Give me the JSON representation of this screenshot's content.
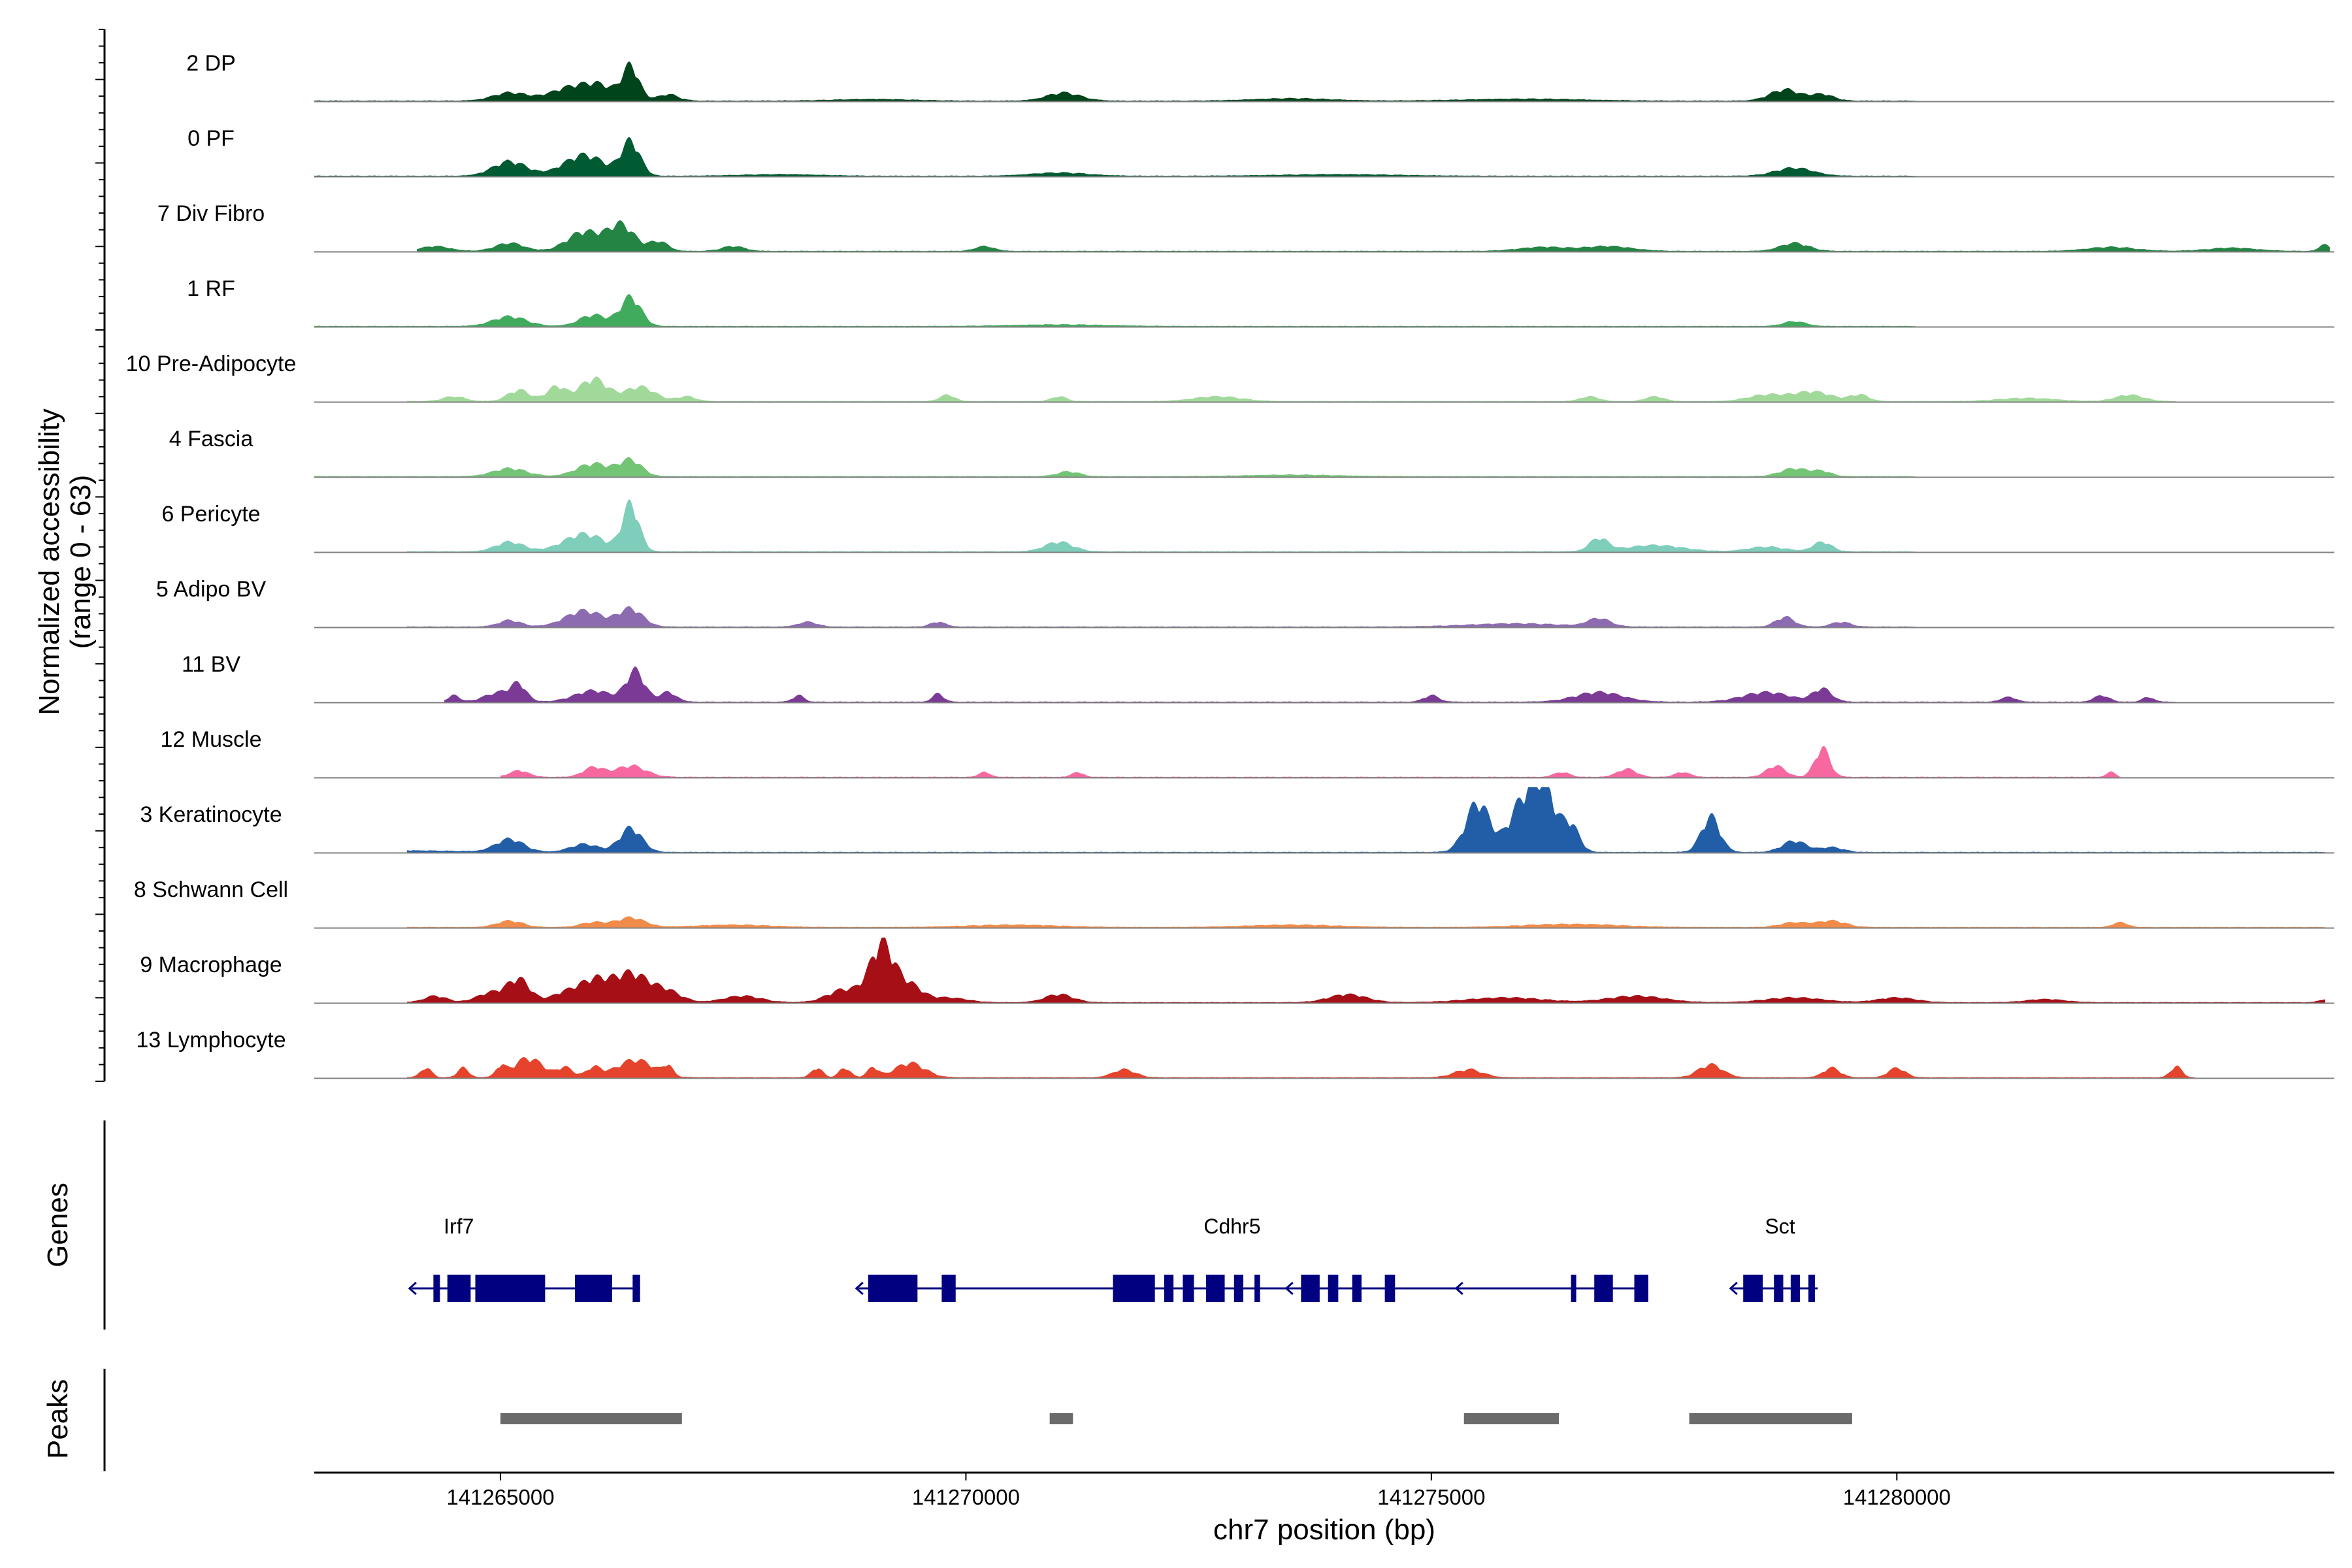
{
  "chart_data": {
    "type": "area",
    "title": "",
    "xlabel": "chr7 position (bp)",
    "ylabel_lines": [
      "Normalized accessibility",
      "(range 0 - 63)"
    ],
    "y_range": [
      0,
      63
    ],
    "xlim": [
      141263000,
      141284700
    ],
    "x_ticks": [
      141265000,
      141270000,
      141275000,
      141280000
    ],
    "x_tick_labels": [
      "141265000",
      "141270000",
      "141275000",
      "141280000"
    ],
    "tracks": [
      {
        "name": "2 DP",
        "color": "#00441b",
        "signal_range": [
          141263000,
          141280200
        ],
        "peaks": [
          [
            141265100,
            180,
            5
          ],
          [
            141265800,
            240,
            9
          ],
          [
            141266100,
            150,
            6
          ],
          [
            141266400,
            90,
            21
          ],
          [
            141266800,
            110,
            4
          ],
          [
            141271050,
            180,
            5
          ],
          [
            141278800,
            160,
            7
          ],
          [
            141279200,
            120,
            4
          ],
          [
            141273500,
            400,
            1.5
          ],
          [
            141269000,
            400,
            1
          ],
          [
            141276000,
            600,
            1.2
          ]
        ]
      },
      {
        "name": "0 PF",
        "color": "#005a32",
        "signal_range": [
          141263000,
          141280200
        ],
        "peaks": [
          [
            141265100,
            180,
            9
          ],
          [
            141265900,
            220,
            13
          ],
          [
            141266400,
            100,
            21
          ],
          [
            141271000,
            300,
            2
          ],
          [
            141278900,
            200,
            5
          ],
          [
            141268000,
            400,
            1
          ],
          [
            141274000,
            600,
            1
          ]
        ]
      },
      {
        "name": "7 Div Fibro",
        "color": "#238443",
        "signal_range": [
          141264100,
          141284650
        ],
        "peaks": [
          [
            141264300,
            150,
            3
          ],
          [
            141265100,
            150,
            5
          ],
          [
            141265900,
            180,
            12
          ],
          [
            141266300,
            140,
            16
          ],
          [
            141266700,
            100,
            6
          ],
          [
            141267500,
            120,
            3
          ],
          [
            141270200,
            100,
            3
          ],
          [
            141276200,
            250,
            2.5
          ],
          [
            141276900,
            250,
            3
          ],
          [
            141278900,
            150,
            5
          ],
          [
            141282300,
            250,
            2.5
          ],
          [
            141283600,
            250,
            2
          ],
          [
            141284600,
            60,
            4
          ]
        ]
      },
      {
        "name": "1 RF",
        "color": "#41ab5d",
        "signal_range": [
          141263000,
          141280200
        ],
        "peaks": [
          [
            141265100,
            180,
            6
          ],
          [
            141266000,
            150,
            7
          ],
          [
            141266400,
            110,
            18
          ],
          [
            141278900,
            120,
            3
          ],
          [
            141271000,
            500,
            1
          ]
        ]
      },
      {
        "name": "10 Pre-Adipocyte",
        "color": "#a1d99b",
        "signal_range": [
          141264000,
          141283000
        ],
        "peaks": [
          [
            141264500,
            120,
            3
          ],
          [
            141265200,
            120,
            7
          ],
          [
            141265600,
            100,
            9
          ],
          [
            141266000,
            150,
            14
          ],
          [
            141266500,
            160,
            9
          ],
          [
            141267000,
            100,
            3
          ],
          [
            141269800,
            80,
            4
          ],
          [
            141271000,
            80,
            3
          ],
          [
            141272700,
            250,
            3
          ],
          [
            141276700,
            100,
            3
          ],
          [
            141277400,
            100,
            3
          ],
          [
            141278600,
            200,
            4
          ],
          [
            141279100,
            200,
            6
          ],
          [
            141279600,
            100,
            4
          ],
          [
            141282500,
            150,
            4
          ],
          [
            141281400,
            300,
            2
          ]
        ]
      },
      {
        "name": "4 Fascia",
        "color": "#74c476",
        "signal_range": [
          141263000,
          141280200
        ],
        "peaks": [
          [
            141265100,
            180,
            5
          ],
          [
            141266000,
            180,
            8
          ],
          [
            141266400,
            120,
            10
          ],
          [
            141271100,
            120,
            3
          ],
          [
            141278900,
            150,
            5
          ],
          [
            141279200,
            100,
            3
          ],
          [
            141273500,
            500,
            1
          ]
        ]
      },
      {
        "name": "6 Pericyte",
        "color": "#7fcdbb",
        "signal_range": [
          141264000,
          141280200
        ],
        "peaks": [
          [
            141265100,
            150,
            6
          ],
          [
            141265900,
            220,
            11
          ],
          [
            141266400,
            90,
            29
          ],
          [
            141271000,
            150,
            6
          ],
          [
            141276800,
            100,
            8
          ],
          [
            141277400,
            300,
            4
          ],
          [
            141278600,
            200,
            3
          ],
          [
            141279200,
            100,
            6
          ]
        ]
      },
      {
        "name": "5 Adipo BV",
        "color": "#8c6bb1",
        "signal_range": [
          141264000,
          141280200
        ],
        "peaks": [
          [
            141265100,
            120,
            4
          ],
          [
            141265900,
            200,
            10
          ],
          [
            141266400,
            130,
            11
          ],
          [
            141268300,
            100,
            3
          ],
          [
            141269700,
            80,
            3
          ],
          [
            141275900,
            500,
            2
          ],
          [
            141276800,
            120,
            5
          ],
          [
            141278800,
            100,
            6
          ],
          [
            141279400,
            100,
            3
          ]
        ]
      },
      {
        "name": "11 BV",
        "color": "#7a3a96",
        "signal_range": [
          141264400,
          141283000
        ],
        "peaks": [
          [
            141264500,
            60,
            4
          ],
          [
            141265000,
            160,
            6
          ],
          [
            141265200,
            80,
            9
          ],
          [
            141266000,
            200,
            7
          ],
          [
            141266450,
            100,
            19
          ],
          [
            141266800,
            90,
            6
          ],
          [
            141268200,
            60,
            4
          ],
          [
            141269700,
            60,
            5
          ],
          [
            141275000,
            80,
            4
          ],
          [
            141276800,
            250,
            6
          ],
          [
            141278600,
            250,
            6
          ],
          [
            141279200,
            100,
            8
          ],
          [
            141281200,
            80,
            3
          ],
          [
            141282200,
            80,
            4
          ],
          [
            141282700,
            60,
            3
          ]
        ]
      },
      {
        "name": "12 Muscle",
        "color": "#f768a1",
        "signal_range": [
          141265000,
          141282400
        ],
        "peaks": [
          [
            141265200,
            100,
            4
          ],
          [
            141266000,
            110,
            6
          ],
          [
            141266400,
            160,
            7
          ],
          [
            141270200,
            60,
            3
          ],
          [
            141271200,
            60,
            3
          ],
          [
            141277100,
            100,
            5
          ],
          [
            141278700,
            100,
            7
          ],
          [
            141279200,
            80,
            18
          ],
          [
            141282300,
            50,
            3
          ],
          [
            141276400,
            80,
            3
          ],
          [
            141277700,
            80,
            3
          ]
        ]
      },
      {
        "name": "3 Keratinocyte",
        "color": "#225ea8",
        "signal_range": [
          141264000,
          141284600
        ],
        "peaks": [
          [
            141265100,
            150,
            8
          ],
          [
            141265900,
            150,
            5
          ],
          [
            141266400,
            120,
            15
          ],
          [
            141275500,
            130,
            31
          ],
          [
            141275950,
            130,
            26
          ],
          [
            141276200,
            130,
            42
          ],
          [
            141276500,
            90,
            16
          ],
          [
            141278000,
            100,
            22
          ],
          [
            141278900,
            130,
            7
          ],
          [
            141279300,
            120,
            3
          ],
          [
            141263900,
            600,
            1
          ]
        ]
      },
      {
        "name": "8 Schwann Cell",
        "color": "#f08b4a",
        "signal_range": [
          141264000,
          141284600
        ],
        "peaks": [
          [
            141265100,
            140,
            4
          ],
          [
            141266000,
            140,
            3
          ],
          [
            141266400,
            150,
            6
          ],
          [
            141267500,
            400,
            1.5
          ],
          [
            141270500,
            500,
            1.5
          ],
          [
            141273500,
            500,
            1.5
          ],
          [
            141276500,
            500,
            2
          ],
          [
            141278900,
            150,
            3
          ],
          [
            141279300,
            150,
            4
          ],
          [
            141282400,
            80,
            3
          ]
        ]
      },
      {
        "name": "9 Macrophage",
        "color": "#a50f15",
        "signal_range": [
          141264000,
          141284600
        ],
        "peaks": [
          [
            141264300,
            120,
            4
          ],
          [
            141264900,
            150,
            6
          ],
          [
            141265200,
            120,
            14
          ],
          [
            141265700,
            150,
            6
          ],
          [
            141266000,
            150,
            12
          ],
          [
            141266400,
            200,
            18
          ],
          [
            141266800,
            150,
            6
          ],
          [
            141267600,
            200,
            4
          ],
          [
            141268700,
            180,
            8
          ],
          [
            141269100,
            130,
            36
          ],
          [
            141269400,
            130,
            10
          ],
          [
            141269800,
            200,
            3
          ],
          [
            141271000,
            150,
            5
          ],
          [
            141274100,
            200,
            5
          ],
          [
            141275800,
            400,
            3
          ],
          [
            141277200,
            300,
            4
          ],
          [
            141278900,
            300,
            3
          ],
          [
            141280000,
            200,
            3
          ],
          [
            141281600,
            200,
            2
          ],
          [
            141284600,
            60,
            2
          ]
        ]
      },
      {
        "name": "13 Lymphocyte",
        "color": "#e5432c",
        "signal_range": [
          141264000,
          141283200
        ],
        "peaks": [
          [
            141264200,
            60,
            6
          ],
          [
            141264600,
            60,
            6
          ],
          [
            141265000,
            50,
            6
          ],
          [
            141265300,
            160,
            12
          ],
          [
            141265700,
            80,
            6
          ],
          [
            141266000,
            80,
            6
          ],
          [
            141266450,
            200,
            11
          ],
          [
            141266800,
            50,
            6
          ],
          [
            141268400,
            60,
            6
          ],
          [
            141268700,
            60,
            6
          ],
          [
            141269000,
            60,
            6
          ],
          [
            141269400,
            160,
            9
          ],
          [
            141271700,
            120,
            5
          ],
          [
            141275400,
            150,
            5
          ],
          [
            141278000,
            130,
            8
          ],
          [
            141279300,
            90,
            6
          ],
          [
            141280000,
            90,
            6
          ],
          [
            141283000,
            60,
            7
          ]
        ]
      }
    ],
    "genes": [
      {
        "name": "Irf7",
        "strand": "-",
        "start": 141264150,
        "end": 141266500,
        "exons": [
          [
            141264280,
            141264350
          ],
          [
            141264430,
            141264680
          ],
          [
            141264730,
            141265480
          ],
          [
            141265800,
            141266200
          ],
          [
            141266420,
            141266500
          ]
        ]
      },
      {
        "name": "Cdhr5",
        "strand": "-",
        "start": 141268950,
        "end": 141276770,
        "exons": [
          [
            141268950,
            141269480
          ],
          [
            141269740,
            141269890
          ],
          [
            141271580,
            141272030
          ],
          [
            141272130,
            141272230
          ],
          [
            141272330,
            141272450
          ],
          [
            141272580,
            141272780
          ],
          [
            141272880,
            141272980
          ],
          [
            141273100,
            141273160
          ],
          [
            141273600,
            141273800
          ],
          [
            141273890,
            141274000
          ],
          [
            141274150,
            141274250
          ],
          [
            141274500,
            141274610
          ],
          [
            141276500,
            141276530
          ],
          [
            141276750,
            141276950
          ],
          [
            141277180,
            141277330
          ]
        ]
      },
      {
        "name": "Sct",
        "strand": "-",
        "start": 141278340,
        "end": 141279150,
        "exons": [
          [
            141278350,
            141278560
          ],
          [
            141278680,
            141278780
          ],
          [
            141278860,
            141278960
          ],
          [
            141279050,
            141279120
          ]
        ]
      }
    ],
    "gene_track_label": "Genes",
    "peak_track_label": "Peaks",
    "peak_regions": [
      [
        141265000,
        141266950
      ],
      [
        141270900,
        141271150
      ],
      [
        141275350,
        141276370
      ],
      [
        141277770,
        141279520
      ]
    ],
    "colors": {
      "gene": "#000080",
      "peak": "#6b6b6b",
      "baseline": "#808080",
      "axis": "#000000"
    }
  }
}
